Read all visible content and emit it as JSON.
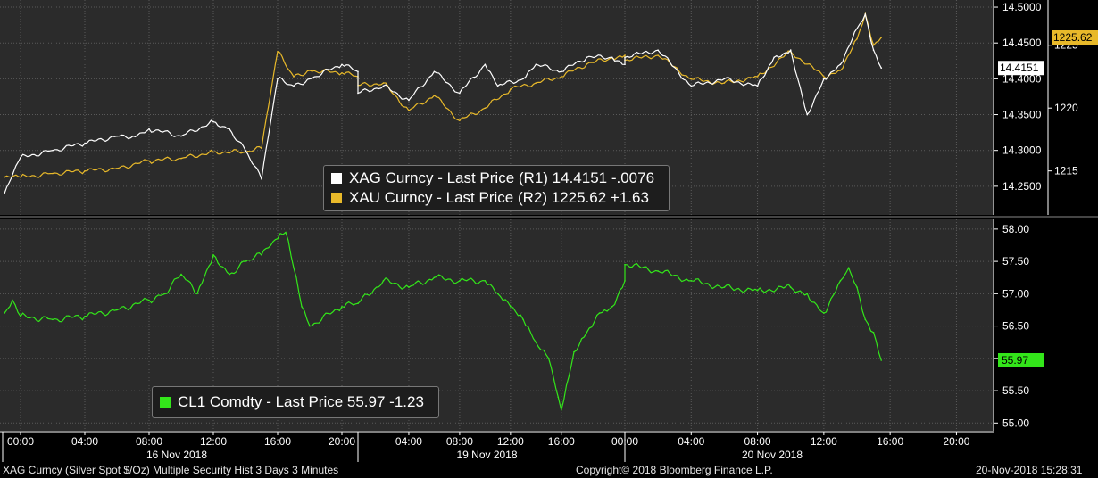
{
  "chart_data": [
    {
      "type": "line",
      "panel": "top",
      "grid": true,
      "x_range": [
        "2018-11-16T00:00",
        "2018-11-20T20:00"
      ],
      "axes": {
        "right_outer": {
          "label": "R1",
          "ticks": [
            "14.5000",
            "14.4500",
            "14.4000",
            "14.3500",
            "14.3000",
            "14.2500"
          ],
          "ylim": [
            14.21,
            14.51
          ]
        },
        "right_inner": {
          "label": "R2",
          "ticks": [
            "1225",
            "1220",
            "1215"
          ],
          "ylim": [
            1211.5,
            1228.6
          ]
        }
      },
      "series": [
        {
          "name": "XAG Curncy",
          "axis": "R1",
          "color": "#ffffff",
          "last_value": "14.4151",
          "x": [
            "2018-11-15T23:00",
            "2018-11-16T00:00",
            "2018-11-16T02:00",
            "2018-11-16T04:00",
            "2018-11-16T06:00",
            "2018-11-16T07:00",
            "2018-11-16T08:00",
            "2018-11-16T10:00",
            "2018-11-16T12:00",
            "2018-11-16T13:00",
            "2018-11-16T14:00",
            "2018-11-16T15:00",
            "2018-11-16T16:00",
            "2018-11-16T17:00",
            "2018-11-16T18:00",
            "2018-11-16T20:00",
            "2018-11-16T21:00",
            "2018-11-19T00:00",
            "2018-11-19T02:00",
            "2018-11-19T04:00",
            "2018-11-19T06:00",
            "2018-11-19T08:00",
            "2018-11-19T10:00",
            "2018-11-19T11:00",
            "2018-11-19T13:00",
            "2018-11-19T14:00",
            "2018-11-19T16:00",
            "2018-11-19T18:00",
            "2018-11-19T20:00",
            "2018-11-19T21:00",
            "2018-11-20T00:00",
            "2018-11-20T02:00",
            "2018-11-20T04:00",
            "2018-11-20T06:00",
            "2018-11-20T08:00",
            "2018-11-20T09:00",
            "2018-11-20T10:00",
            "2018-11-20T11:00",
            "2018-11-20T12:00",
            "2018-11-20T13:00",
            "2018-11-20T14:00",
            "2018-11-20T14:30",
            "2018-11-20T15:00",
            "2018-11-20T15:28"
          ],
          "values": [
            14.24,
            14.29,
            14.3,
            14.31,
            14.32,
            14.32,
            14.33,
            14.32,
            14.34,
            14.33,
            14.3,
            14.26,
            14.4,
            14.39,
            14.4,
            14.42,
            14.41,
            14.38,
            14.39,
            14.37,
            14.41,
            14.38,
            14.42,
            14.39,
            14.4,
            14.42,
            14.41,
            14.43,
            14.43,
            14.42,
            14.43,
            14.44,
            14.39,
            14.4,
            14.39,
            14.43,
            14.44,
            14.35,
            14.4,
            14.42,
            14.47,
            14.49,
            14.44,
            14.4151
          ]
        },
        {
          "name": "XAU Curncy",
          "axis": "R2",
          "color": "#e8b92a",
          "last_value": "1225.62",
          "x": [
            "2018-11-15T23:00",
            "2018-11-16T00:00",
            "2018-11-16T02:00",
            "2018-11-16T04:00",
            "2018-11-16T06:00",
            "2018-11-16T08:00",
            "2018-11-16T10:00",
            "2018-11-16T12:00",
            "2018-11-16T14:00",
            "2018-11-16T15:00",
            "2018-11-16T16:00",
            "2018-11-16T17:00",
            "2018-11-16T18:00",
            "2018-11-16T20:00",
            "2018-11-16T21:00",
            "2018-11-19T00:00",
            "2018-11-19T02:00",
            "2018-11-19T04:00",
            "2018-11-19T06:00",
            "2018-11-19T08:00",
            "2018-11-19T10:00",
            "2018-11-19T12:00",
            "2018-11-19T14:00",
            "2018-11-19T16:00",
            "2018-11-19T18:00",
            "2018-11-19T20:00",
            "2018-11-19T21:00",
            "2018-11-20T00:00",
            "2018-11-20T02:00",
            "2018-11-20T04:00",
            "2018-11-20T06:00",
            "2018-11-20T08:00",
            "2018-11-20T10:00",
            "2018-11-20T12:00",
            "2018-11-20T13:00",
            "2018-11-20T14:00",
            "2018-11-20T14:30",
            "2018-11-20T15:00",
            "2018-11-20T15:28"
          ],
          "values": [
            1214.5,
            1214.5,
            1214.8,
            1215.0,
            1215.2,
            1215.8,
            1216.0,
            1216.5,
            1216.5,
            1216.8,
            1224.5,
            1222.5,
            1223.0,
            1222.8,
            1222.5,
            1221.8,
            1222.0,
            1219.8,
            1221.0,
            1219.0,
            1220.0,
            1221.5,
            1222.0,
            1222.5,
            1223.5,
            1224.0,
            1224.2,
            1223.8,
            1224.2,
            1222.3,
            1222.0,
            1222.5,
            1224.5,
            1222.5,
            1223.0,
            1225.5,
            1227.5,
            1225.0,
            1225.62
          ]
        }
      ],
      "legend": {
        "placement": "center",
        "entries": [
          {
            "text": "XAG Curncy - Last Price (R1) 14.4151  -.0076",
            "color": "#ffffff"
          },
          {
            "text": "XAU Curncy - Last Price (R2) 1225.62  +1.63",
            "color": "#e8b92a"
          }
        ]
      }
    },
    {
      "type": "line",
      "panel": "bottom",
      "grid": true,
      "x_range": [
        "2018-11-16T00:00",
        "2018-11-20T20:00"
      ],
      "axes": {
        "right": {
          "ticks": [
            "58.00",
            "57.50",
            "57.00",
            "56.50",
            "56.00",
            "55.50",
            "55.00"
          ],
          "ylim": [
            54.88,
            58.15
          ]
        }
      },
      "series": [
        {
          "name": "CL1 Comdty",
          "color": "#33e61a",
          "last_value": "55.97",
          "x": [
            "2018-11-15T23:00",
            "2018-11-15T23:30",
            "2018-11-16T00:00",
            "2018-11-16T02:00",
            "2018-11-16T04:00",
            "2018-11-16T06:00",
            "2018-11-16T08:00",
            "2018-11-16T09:00",
            "2018-11-16T10:00",
            "2018-11-16T11:00",
            "2018-11-16T12:00",
            "2018-11-16T13:00",
            "2018-11-16T14:00",
            "2018-11-16T15:00",
            "2018-11-16T16:00",
            "2018-11-16T16:30",
            "2018-11-16T17:00",
            "2018-11-16T17:30",
            "2018-11-16T18:00",
            "2018-11-16T20:00",
            "2018-11-16T21:00",
            "2018-11-19T00:00",
            "2018-11-19T02:00",
            "2018-11-19T04:00",
            "2018-11-19T06:00",
            "2018-11-19T08:00",
            "2018-11-19T10:00",
            "2018-11-19T11:00",
            "2018-11-19T12:00",
            "2018-11-19T13:00",
            "2018-11-19T14:00",
            "2018-11-19T15:00",
            "2018-11-19T15:45",
            "2018-11-19T16:00",
            "2018-11-19T17:00",
            "2018-11-19T18:00",
            "2018-11-19T19:00",
            "2018-11-19T20:00",
            "2018-11-19T21:00",
            "2018-11-20T00:00",
            "2018-11-20T02:00",
            "2018-11-20T04:00",
            "2018-11-20T06:00",
            "2018-11-20T08:00",
            "2018-11-20T10:00",
            "2018-11-20T11:00",
            "2018-11-20T12:00",
            "2018-11-20T13:00",
            "2018-11-20T13:30",
            "2018-11-20T14:00",
            "2018-11-20T14:30",
            "2018-11-20T15:00",
            "2018-11-20T15:28"
          ],
          "values": [
            56.7,
            56.9,
            56.65,
            56.6,
            56.65,
            56.75,
            56.9,
            57.0,
            57.3,
            57.0,
            57.6,
            57.3,
            57.5,
            57.6,
            57.85,
            57.95,
            57.4,
            56.8,
            56.5,
            56.8,
            56.85,
            56.85,
            57.2,
            57.1,
            57.25,
            57.2,
            57.2,
            57.0,
            56.8,
            56.6,
            56.25,
            56.0,
            55.4,
            55.2,
            56.1,
            56.4,
            56.7,
            56.8,
            57.2,
            57.45,
            57.35,
            57.2,
            57.1,
            57.05,
            57.1,
            57.0,
            56.7,
            57.2,
            57.4,
            57.1,
            56.6,
            56.4,
            55.97
          ]
        }
      ],
      "legend": {
        "placement": "bottom-left",
        "entries": [
          {
            "text": "CL1 Comdty - Last Price 55.97  -1.23",
            "color": "#33e61a"
          }
        ]
      }
    }
  ],
  "time_axis": {
    "labels": [
      "00:00",
      "04:00",
      "08:00",
      "12:00",
      "16:00",
      "20:00",
      "04:00",
      "08:00",
      "12:00",
      "16:00",
      "00:00",
      "04:00",
      "08:00",
      "12:00",
      "16:00",
      "20:00"
    ],
    "day_labels": [
      "16 Nov 2018",
      "19 Nov 2018",
      "20 Nov 2018"
    ]
  },
  "footer": {
    "left": "XAG Curncy (Silver Spot  $/Oz) Multiple Security Hist   3 Days 3 Minutes",
    "center": "Copyright© 2018 Bloomberg Finance L.P.",
    "right": "20-Nov-2018 15:28:31"
  },
  "colors": {
    "background": "#2b2b2b",
    "grid": "#5a5a5a",
    "axis_text": "#ffffff"
  }
}
